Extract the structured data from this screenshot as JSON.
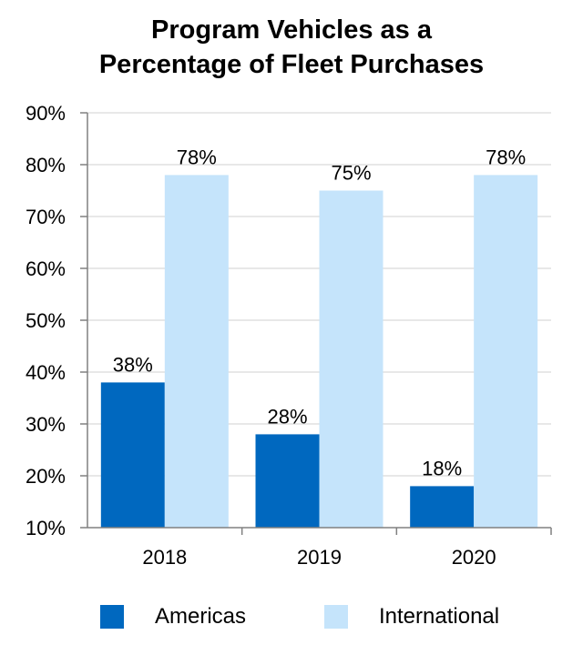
{
  "chart_data": {
    "type": "bar",
    "title": [
      "Program Vehicles as a",
      "Percentage of Fleet Purchases"
    ],
    "categories": [
      "2018",
      "2019",
      "2020"
    ],
    "series": [
      {
        "name": "Americas",
        "values": [
          38,
          28,
          18
        ],
        "labels": [
          "38%",
          "28%",
          "18%"
        ],
        "color": "#0068bf"
      },
      {
        "name": "International",
        "values": [
          78,
          75,
          78
        ],
        "labels": [
          "78%",
          "75%",
          "78%"
        ],
        "color": "#c5e4fb"
      }
    ],
    "ylim": [
      10,
      90
    ],
    "yticks": [
      10,
      20,
      30,
      40,
      50,
      60,
      70,
      80,
      90
    ],
    "ytick_labels": [
      "10%",
      "20%",
      "30%",
      "40%",
      "50%",
      "60%",
      "70%",
      "80%",
      "90%"
    ],
    "grid": true,
    "legend": "bottom",
    "colors": {
      "grid": "#e0e0e0",
      "axis": "#808080"
    }
  }
}
